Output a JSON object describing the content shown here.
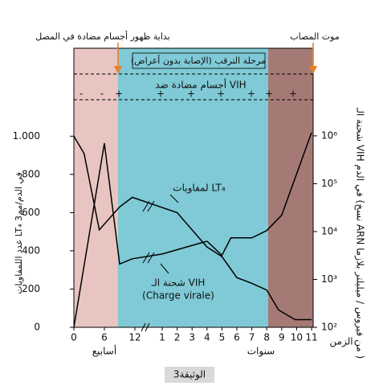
{
  "chart_data": {
    "type": "line",
    "annotations": {
      "antibody_start": "بداية ظهور أجسام مضادة في المصل",
      "death": "موت المصاب",
      "latency": "مرحلة الترقب (الإصابة بدون أعراض)",
      "antibodies": "أجسام مضادة ضد VIH",
      "charge_virale": "(Charge virale)",
      "caption": "الوثيقة3"
    },
    "antibody_signs": [
      "-",
      "-",
      "+",
      "+",
      "+",
      "+",
      "+",
      "+",
      "+"
    ],
    "ylabel": "عدد اللمفاويات LT₄ في الدم/مم3",
    "y2label": "شحنة الـ VIH في الدم (نسخ ARN من فيروس / ميليلتر بلازما )",
    "xlabel": "الزمن",
    "x_segments": [
      {
        "label": "أسابيع",
        "xlim": [
          0,
          12
        ],
        "xticks": [
          0,
          6,
          12
        ]
      },
      {
        "label": "سنوات",
        "xlim": [
          1,
          11
        ],
        "xticks": [
          1,
          2,
          3,
          4,
          5,
          6,
          7,
          8,
          9,
          10,
          11
        ]
      }
    ],
    "ylim": [
      0,
      1460
    ],
    "yticks": [
      0,
      200,
      400,
      600,
      800,
      {
        "value": 1000,
        "label": "1.000"
      }
    ],
    "y2lim": [
      100,
      67600000
    ],
    "y2log": true,
    "y2ticks": [
      {
        "value": 100,
        "label": "10²"
      },
      {
        "value": 1000,
        "label": "10³"
      },
      {
        "value": 10000,
        "label": "10⁴"
      },
      {
        "value": 100000,
        "label": "10⁵"
      },
      {
        "value": 1000000,
        "label": "10⁶"
      }
    ],
    "series": [
      {
        "name": "لمفاويات LT₄",
        "color": "#000000",
        "axis": "y",
        "segments": [
          {
            "x": [
              0,
              2,
              5,
              9,
              11.5
            ],
            "values": [
              1000,
              910,
              510,
              630,
              680
            ]
          },
          {
            "x": [
              2,
              4,
              5,
              6,
              7,
              8,
              8.8,
              9.9,
              11
            ],
            "values": [
              600,
              420,
              370,
              260,
              230,
              195,
              90,
              40,
              40
            ]
          }
        ]
      },
      {
        "name": "شحنة الـ VIH",
        "color": "#000000",
        "axis": "y2",
        "segments": [
          {
            "x": [
              0,
              6,
              9,
              11.5
            ],
            "values": [
              100,
              700000,
              2100,
              2700
            ]
          },
          {
            "x": [
              1,
              4,
              5,
              5.6,
              7,
              8,
              9,
              11
            ],
            "values": [
              3400,
              6300,
              3200,
              7400,
              7400,
              10500,
              22000,
              1170000
            ]
          }
        ]
      }
    ]
  }
}
